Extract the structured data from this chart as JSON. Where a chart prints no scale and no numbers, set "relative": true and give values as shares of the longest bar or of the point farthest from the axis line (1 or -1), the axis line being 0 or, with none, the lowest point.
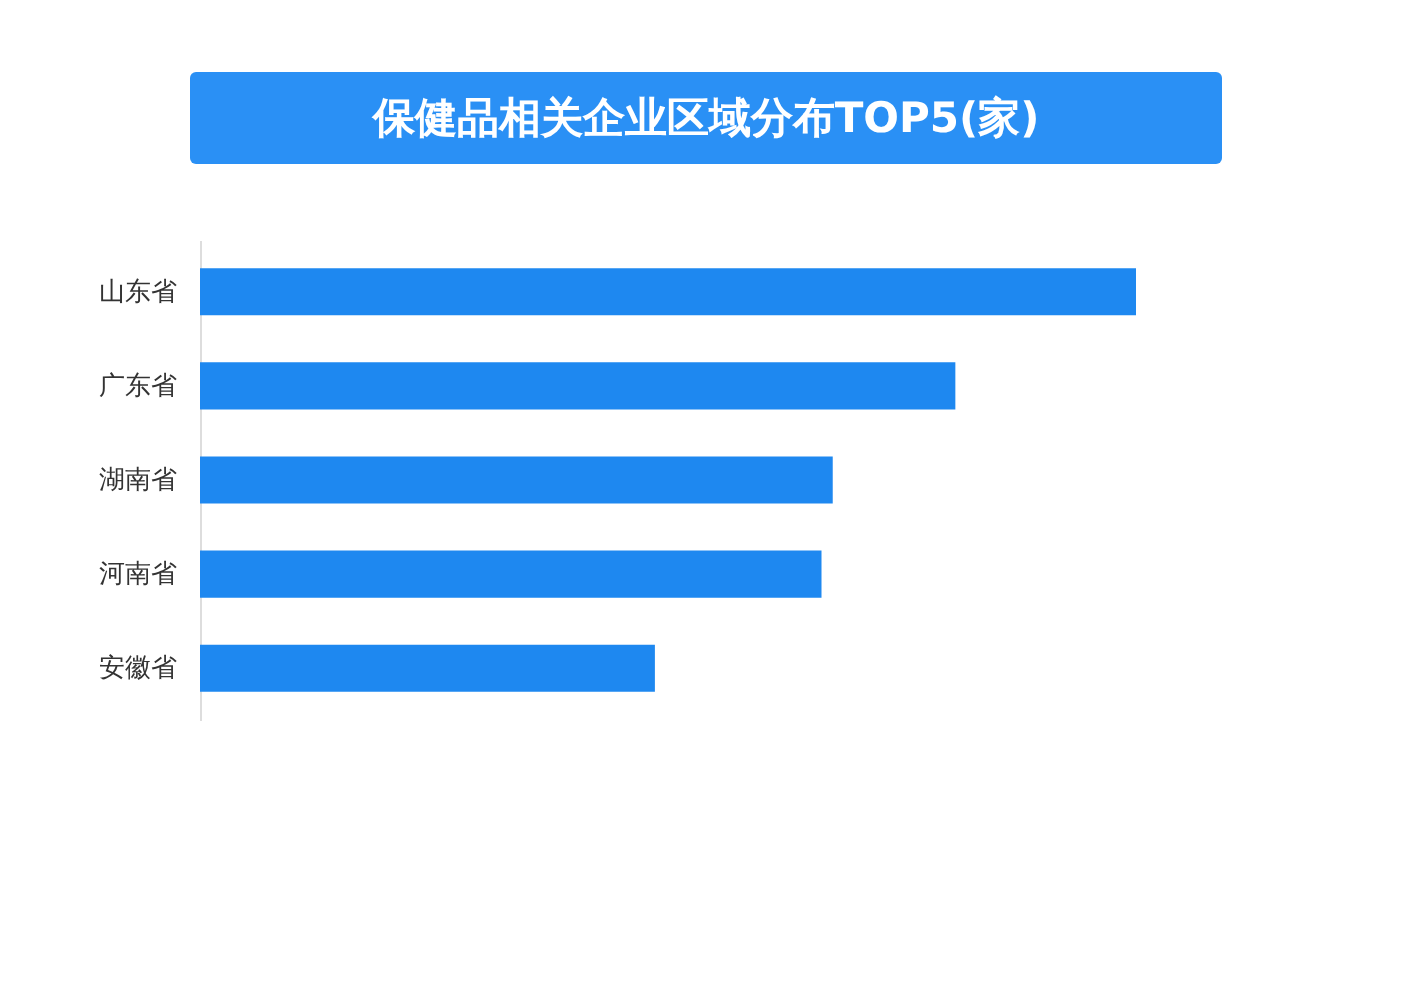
{
  "chart_data": {
    "type": "bar",
    "orientation": "horizontal",
    "relative": true,
    "title": "保健品相关企业区域分布TOP5(家)",
    "categories": [
      "山东省",
      "广东省",
      "湖南省",
      "河南省",
      "安徽省"
    ],
    "values": [
      1,
      0.807,
      0.676,
      0.664,
      0.486
    ],
    "color": "#1e88f0"
  }
}
